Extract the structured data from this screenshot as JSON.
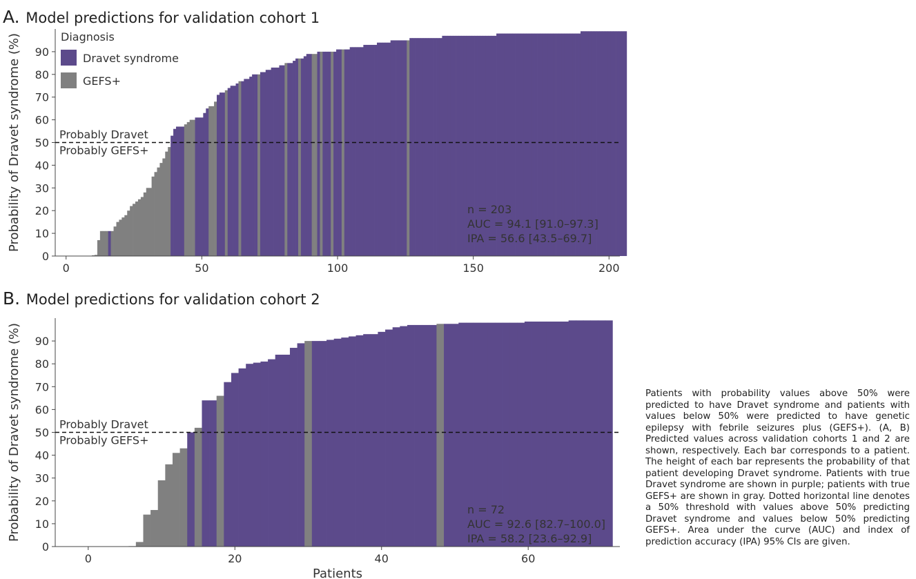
{
  "colors": {
    "dravet": "#5c4a8b",
    "gefs": "#808080",
    "threshold": "#111111",
    "text": "#333333"
  },
  "caption": "Patients with probability values above 50% were predicted to have Dravet syndrome and patients with values below 50% were pre­dicted to have genetic epilepsy with febrile seizures plus (GEFS+). (A, B) Predicted values across validation cohorts 1 and 2 are shown, respectively. Each bar corresponds to a pa­tient. The height of each bar represents the probability of that patient developing Dravet syndrome. Patients with true Dravet syn­drome are shown in purple; patients with true GEFS+ are shown in gray. Dotted horizontal line denotes a 50% threshold with values above 50% predicting Dravet syndrome and values below 50% predicting GEFS+. Area un­der the curve (AUC) and index of prediction accuracy (IPA) 95% CIs are given.",
  "chart_data": [
    {
      "type": "bar",
      "panel_letter": "A.",
      "title": "Model predictions for validation cohort 1",
      "xlabel": "",
      "ylabel": "Probability of Dravet syndrome (%)",
      "xlim": [
        -4,
        204
      ],
      "ylim": [
        0,
        100
      ],
      "xticks": [
        0,
        50,
        100,
        150,
        200
      ],
      "yticks": [
        0,
        10,
        20,
        30,
        40,
        50,
        60,
        70,
        80,
        90
      ],
      "threshold": 50,
      "threshold_labels": {
        "above": "Probably Dravet",
        "below": "Probably GEFS+"
      },
      "legend": {
        "title": "Diagnosis",
        "position": "top-left",
        "entries": [
          {
            "label": "Dravet syndrome",
            "class": "D"
          },
          {
            "label": "GEFS+",
            "class": "G"
          }
        ]
      },
      "stats": [
        "n = 203",
        "AUC = 94.1 [91.0–97.3]",
        "IPA = 56.6 [43.5–69.7]"
      ],
      "n": 203,
      "values": [
        0,
        0,
        0,
        0,
        0,
        0,
        0,
        0,
        0,
        0,
        0.3,
        0.5,
        7,
        11,
        11,
        11,
        11,
        11,
        13,
        15,
        16,
        17,
        18,
        20,
        22,
        23,
        24,
        25,
        26,
        28,
        30,
        30,
        35,
        37,
        39,
        41,
        43,
        46,
        48,
        53,
        56,
        57,
        57,
        57,
        58,
        59,
        60,
        60,
        61,
        61,
        61,
        63,
        65,
        66,
        66,
        68,
        71,
        72,
        72,
        73,
        74,
        75,
        75,
        76,
        77,
        77,
        78,
        78,
        79,
        80,
        80,
        80,
        81,
        81,
        82,
        82,
        83,
        83,
        83,
        84,
        84,
        85,
        85,
        85,
        86,
        87,
        87,
        87,
        88,
        89,
        89,
        89,
        89,
        90,
        90,
        90,
        90,
        90,
        90,
        90,
        91,
        91,
        91,
        91,
        91,
        92,
        92,
        92,
        92,
        92,
        93,
        93,
        93,
        93,
        93,
        94,
        94,
        94,
        94,
        94,
        95,
        95,
        95,
        95,
        95,
        95,
        95,
        96,
        96,
        96,
        96,
        96,
        96,
        96,
        96,
        96,
        96,
        96,
        96,
        97,
        97,
        97,
        97,
        97,
        97,
        97,
        97,
        97,
        97,
        97,
        97,
        97,
        97,
        97,
        97,
        97,
        97,
        97,
        97,
        98,
        98,
        98,
        98,
        98,
        98,
        98,
        98,
        98,
        98,
        98,
        98,
        98,
        98,
        98,
        98,
        98,
        98,
        98,
        98,
        98,
        98,
        98,
        98,
        98,
        98,
        98,
        98,
        98,
        98,
        98,
        99,
        99,
        99,
        99,
        99,
        99,
        99,
        99,
        99,
        99,
        99,
        99,
        99,
        99,
        99,
        99,
        99
      ],
      "classes": "GGGGGGGGGGGGGGGGDGGGGGGGGGGGGGGGGGGGGGGDDDDDGGGGDDDDDGGGDDDGDDDDGDDDDDDGDDDDDDDDDGDDDDGDDDDGGDGDDDGDDDGDDDDDDDDDDDDDDDDDDDDDDDGDDDDDDDDDDDDDDDDDDDDDDDDDDDDDDDDDDDDDDDDDDDDDDDDDDDDDDDDDDDDDDDDDDDDDDDDDDDDDD"
    },
    {
      "type": "bar",
      "panel_letter": "B.",
      "title": "Model predictions for validation cohort 2",
      "xlabel": "Patients",
      "ylabel": "Probability of Dravet syndrome (%)",
      "xlim": [
        -4.5,
        72.5
      ],
      "ylim": [
        0,
        100
      ],
      "xticks": [
        0,
        20,
        40,
        60
      ],
      "yticks": [
        0,
        10,
        20,
        30,
        40,
        50,
        60,
        70,
        80,
        90
      ],
      "threshold": 50,
      "threshold_labels": {
        "above": "Probably Dravet",
        "below": "Probably GEFS+"
      },
      "legend": null,
      "stats": [
        "n = 72",
        "AUC = 92.6 [82.7–100.0]",
        "IPA = 58.2 [23.6–92.9]"
      ],
      "n": 72,
      "values": [
        0,
        0,
        0,
        0,
        0,
        0,
        0.2,
        2,
        14,
        16,
        29,
        36,
        41,
        43,
        50,
        52,
        64,
        64,
        66,
        72,
        76,
        78,
        80,
        80.5,
        81,
        82,
        84,
        84,
        87,
        89,
        90,
        90,
        90,
        90.5,
        91,
        91.5,
        92,
        92.5,
        93,
        93,
        94,
        95,
        96,
        96.5,
        97,
        97,
        97,
        97,
        97.5,
        97.5,
        97.5,
        98,
        98,
        98,
        98,
        98,
        98,
        98,
        98,
        98,
        98.5,
        98.5,
        98.5,
        98.5,
        98.5,
        98.5,
        99,
        99,
        99,
        99,
        99,
        99
      ],
      "classes": "GGGGGGGGGGGGGGDGDDGDDDDDDDDDDDGDDDDDDDDDDDDDDDDDGDDDDDDDDDDDDDDDDDDDDDDD"
    }
  ]
}
